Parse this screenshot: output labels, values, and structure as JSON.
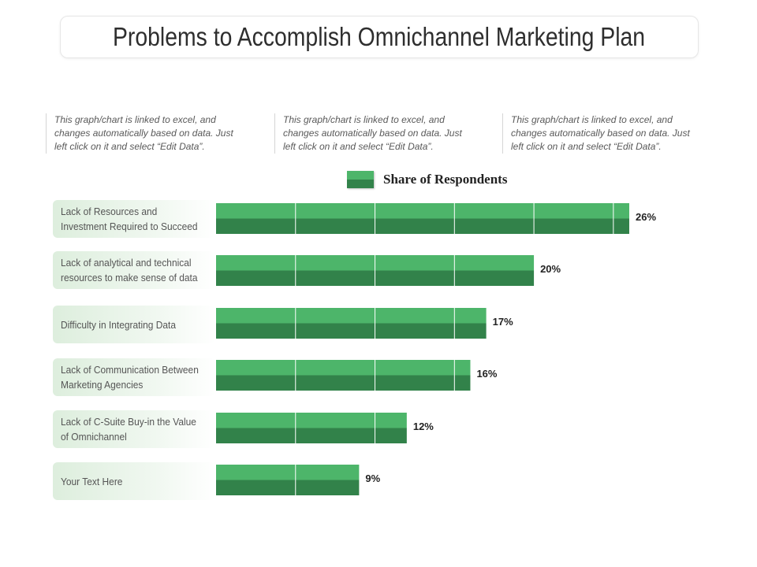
{
  "title": "Problems to Accomplish Omnichannel Marketing Plan",
  "notes": [
    "This graph/chart is linked to excel, and changes automatically based on data. Just left click on it and select “Edit Data”.",
    "This graph/chart is linked to excel, and changes automatically based on data. Just left click on it and select “Edit Data”.",
    "This graph/chart is linked to excel, and changes automatically based on data. Just left click on it and select “Edit Data”."
  ],
  "colors": {
    "bar_top": "#4db56a",
    "bar_bottom": "#32824a",
    "grid": "#ffffff"
  },
  "chart_data": {
    "type": "bar",
    "orientation": "horizontal",
    "title": "Problems to Accomplish Omnichannel Marketing Plan",
    "legend": [
      "Share of Respondents"
    ],
    "legend_position": "top",
    "categories": [
      "Lack of Resources and Investment Required to Succeed",
      "Lack of analytical and technical resources to make sense of data",
      "Difficulty in Integrating Data",
      "Lack of Communication Between Marketing Agencies",
      "Lack of C-Suite Buy-in the Value of Omnichannel",
      "Your Text Here"
    ],
    "values": [
      26,
      20,
      17,
      16,
      12,
      9
    ],
    "value_labels": [
      "26%",
      "20%",
      "17%",
      "16%",
      "12%",
      "9%"
    ],
    "xlim": [
      0,
      26
    ],
    "grid_step": 5,
    "unit": "%"
  }
}
